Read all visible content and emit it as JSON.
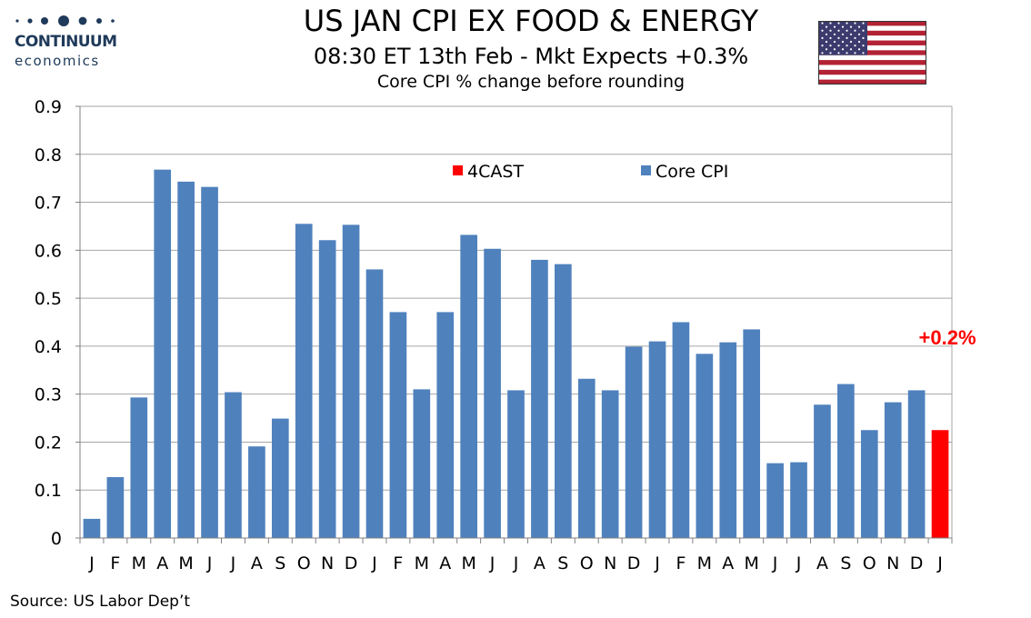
{
  "logo": {
    "line1": "CONTINUUM",
    "line2": "economics",
    "color": "#1f3a5a"
  },
  "header": {
    "title": "US JAN CPI EX FOOD & ENERGY",
    "subtitle": "08:30 ET 13th Feb - Mkt Expects +0.3%",
    "subtitle2": "Core CPI % change before rounding"
  },
  "flag": {
    "icon": "us-flag-icon"
  },
  "source": "Source: US Labor Dep’t",
  "chart_data": {
    "type": "bar",
    "categories": [
      "J",
      "F",
      "M",
      "A",
      "M",
      "J",
      "J",
      "A",
      "S",
      "O",
      "N",
      "D",
      "J",
      "F",
      "M",
      "A",
      "M",
      "J",
      "J",
      "A",
      "S",
      "O",
      "N",
      "D",
      "J",
      "F",
      "M",
      "A",
      "M",
      "J",
      "J",
      "A",
      "S",
      "O",
      "N",
      "D",
      "J"
    ],
    "series": [
      {
        "name": "Core CPI",
        "color": "#4f81bd",
        "values": [
          0.04,
          0.127,
          0.293,
          0.768,
          0.743,
          0.732,
          0.304,
          0.191,
          0.249,
          0.655,
          0.621,
          0.653,
          0.56,
          0.471,
          0.31,
          0.471,
          0.632,
          0.603,
          0.308,
          0.58,
          0.571,
          0.332,
          0.308,
          0.399,
          0.41,
          0.45,
          0.384,
          0.408,
          0.435,
          0.156,
          0.158,
          0.278,
          0.321,
          0.225,
          0.283,
          0.308,
          null
        ]
      },
      {
        "name": "4CAST",
        "color": "#ff0000",
        "values": [
          null,
          null,
          null,
          null,
          null,
          null,
          null,
          null,
          null,
          null,
          null,
          null,
          null,
          null,
          null,
          null,
          null,
          null,
          null,
          null,
          null,
          null,
          null,
          null,
          null,
          null,
          null,
          null,
          null,
          null,
          null,
          null,
          null,
          null,
          null,
          null,
          0.225
        ]
      }
    ],
    "ylim": [
      0,
      0.9
    ],
    "yticks": [
      "0",
      "0.1",
      "0.2",
      "0.3",
      "0.4",
      "0.5",
      "0.6",
      "0.7",
      "0.8",
      "0.9"
    ],
    "grid": true,
    "legend": "top-center",
    "annotation": {
      "text": "+0.2%",
      "color": "#ff0000"
    }
  }
}
